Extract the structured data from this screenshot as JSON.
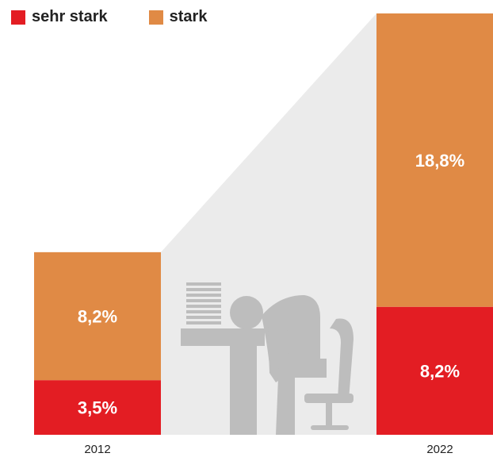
{
  "chart_data": {
    "type": "bar",
    "stacked": true,
    "categories": [
      "2012",
      "2022"
    ],
    "series": [
      {
        "name": "sehr stark",
        "values": [
          3.5,
          8.2
        ],
        "labels": [
          "3,5%",
          "8,2%"
        ],
        "color": "#E31D23"
      },
      {
        "name": "stark",
        "values": [
          8.2,
          18.8
        ],
        "labels": [
          "8,2%",
          "18,8%"
        ],
        "color": "#E08A45"
      }
    ],
    "value_unit": "%",
    "legend_position": "top-left",
    "grid": false,
    "background_shape_color": "#EBEBEB",
    "illustration": "exhausted-person-at-desk-icon",
    "illustration_color": "#BDBDBD"
  }
}
